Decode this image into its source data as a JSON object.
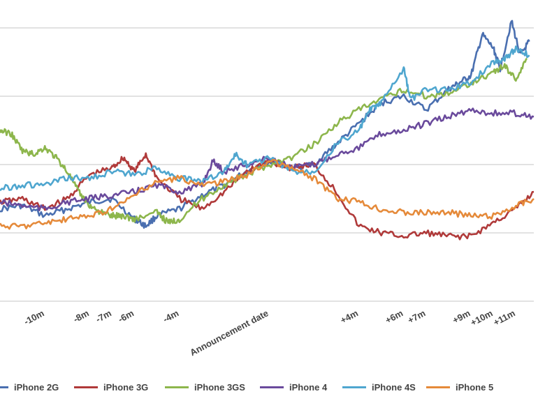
{
  "chart_data": {
    "type": "line",
    "title": "",
    "xlabel": "",
    "ylabel": "",
    "grid": true,
    "legend_position": "bottom",
    "x_ticks": [
      "-10m",
      "-8m",
      "-7m",
      "-6m",
      "-4m",
      "Announcement date",
      "+4m",
      "+6m",
      "+7m",
      "+9m",
      "+10m",
      "+11m"
    ],
    "x_tick_values": [
      -10,
      -8,
      -7,
      -6,
      -4,
      0,
      4,
      6,
      7,
      9,
      10,
      11
    ],
    "xlim": [
      -12,
      11.8
    ],
    "ylim": [
      0,
      4
    ],
    "gridlines": [
      0,
      1,
      2,
      3,
      4
    ],
    "series": [
      {
        "name": "iPhone 2G",
        "color": "#4a6fb0",
        "x": [
          -12,
          -11,
          -10,
          -9,
          -8,
          -7,
          -6,
          -5.5,
          -5,
          -4,
          -3,
          -2,
          -1,
          0,
          1,
          2,
          3,
          4,
          5,
          6,
          7,
          8,
          8.5,
          9,
          9.5,
          10,
          10.3,
          10.8,
          11.2,
          11.6
        ],
        "y": [
          1.35,
          1.4,
          1.25,
          1.35,
          1.45,
          1.5,
          1.2,
          1.1,
          1.25,
          1.35,
          1.55,
          1.7,
          1.9,
          2.05,
          1.95,
          2.0,
          2.3,
          2.6,
          2.9,
          3.0,
          2.8,
          3.1,
          3.2,
          3.3,
          3.9,
          3.7,
          3.4,
          4.1,
          3.6,
          3.8
        ]
      },
      {
        "name": "iPhone 3G",
        "color": "#b03a3a",
        "x": [
          -12,
          -11,
          -10,
          -9,
          -8,
          -7,
          -6.5,
          -6,
          -5.5,
          -5,
          -4,
          -3,
          -2,
          -1,
          0,
          1,
          2,
          3,
          4,
          5,
          6,
          7,
          8,
          9,
          10,
          11,
          11.8
        ],
        "y": [
          1.45,
          1.5,
          1.35,
          1.5,
          1.85,
          1.95,
          2.1,
          1.9,
          2.15,
          1.8,
          1.5,
          1.35,
          1.6,
          1.9,
          2.05,
          1.95,
          2.0,
          1.6,
          1.1,
          1.0,
          0.95,
          1.0,
          0.95,
          0.95,
          1.15,
          1.35,
          1.6
        ]
      },
      {
        "name": "iPhone 3GS",
        "color": "#8db64c",
        "x": [
          -12,
          -11.5,
          -11,
          -10.5,
          -10,
          -9.5,
          -9,
          -8.5,
          -8,
          -7.5,
          -7,
          -6.5,
          -6,
          -5,
          -4.5,
          -4,
          -3,
          -2,
          -1,
          0,
          1,
          2,
          3,
          4,
          5,
          6,
          7,
          8,
          9,
          10,
          10.5,
          11,
          11.5
        ],
        "y": [
          2.5,
          2.45,
          2.2,
          2.15,
          2.25,
          2.1,
          1.9,
          1.6,
          1.4,
          1.3,
          1.25,
          1.25,
          1.2,
          1.3,
          1.15,
          1.2,
          1.5,
          1.7,
          1.85,
          2.0,
          2.1,
          2.3,
          2.6,
          2.8,
          2.95,
          3.1,
          3.0,
          3.05,
          3.2,
          3.35,
          3.45,
          3.25,
          3.55
        ]
      },
      {
        "name": "iPhone 4",
        "color": "#6a4a9c",
        "x": [
          -12,
          -11,
          -10,
          -9,
          -8,
          -7,
          -6,
          -5,
          -4,
          -3,
          -2.5,
          -2,
          -1,
          0,
          1,
          2,
          3,
          4,
          5,
          6,
          7,
          8,
          9,
          10,
          11,
          11.8
        ],
        "y": [
          1.45,
          1.4,
          1.35,
          1.45,
          1.5,
          1.55,
          1.6,
          1.7,
          1.6,
          1.7,
          2.05,
          1.9,
          2.0,
          2.1,
          1.95,
          2.0,
          2.15,
          2.25,
          2.45,
          2.5,
          2.6,
          2.7,
          2.8,
          2.75,
          2.75,
          2.7
        ]
      },
      {
        "name": "iPhone 4S",
        "color": "#4fa6cf",
        "x": [
          -12,
          -11,
          -10,
          -9,
          -8,
          -7,
          -6,
          -5,
          -4,
          -3,
          -2,
          -1.5,
          -1,
          0,
          1,
          2,
          3,
          4,
          4.5,
          5,
          6,
          6.3,
          7,
          8,
          9,
          10,
          10.5,
          11,
          11.6
        ],
        "y": [
          1.65,
          1.7,
          1.7,
          1.8,
          1.8,
          1.9,
          1.85,
          1.95,
          1.8,
          1.75,
          1.9,
          2.15,
          2.0,
          2.1,
          1.9,
          1.9,
          2.3,
          2.5,
          2.8,
          2.9,
          3.4,
          2.95,
          3.1,
          3.1,
          3.2,
          3.5,
          3.55,
          3.7,
          3.6
        ]
      },
      {
        "name": "iPhone 5",
        "color": "#e58a3a",
        "x": [
          -12,
          -11,
          -10,
          -9,
          -8,
          -7,
          -6,
          -5,
          -4,
          -3,
          -2,
          -1,
          0,
          1,
          2,
          3,
          4,
          5,
          6,
          7,
          8,
          9,
          10,
          11,
          11.8
        ],
        "y": [
          1.1,
          1.1,
          1.15,
          1.2,
          1.25,
          1.35,
          1.55,
          1.75,
          1.8,
          1.7,
          1.75,
          1.85,
          2.05,
          1.95,
          1.8,
          1.5,
          1.45,
          1.35,
          1.3,
          1.3,
          1.3,
          1.25,
          1.25,
          1.4,
          1.5
        ]
      }
    ]
  }
}
